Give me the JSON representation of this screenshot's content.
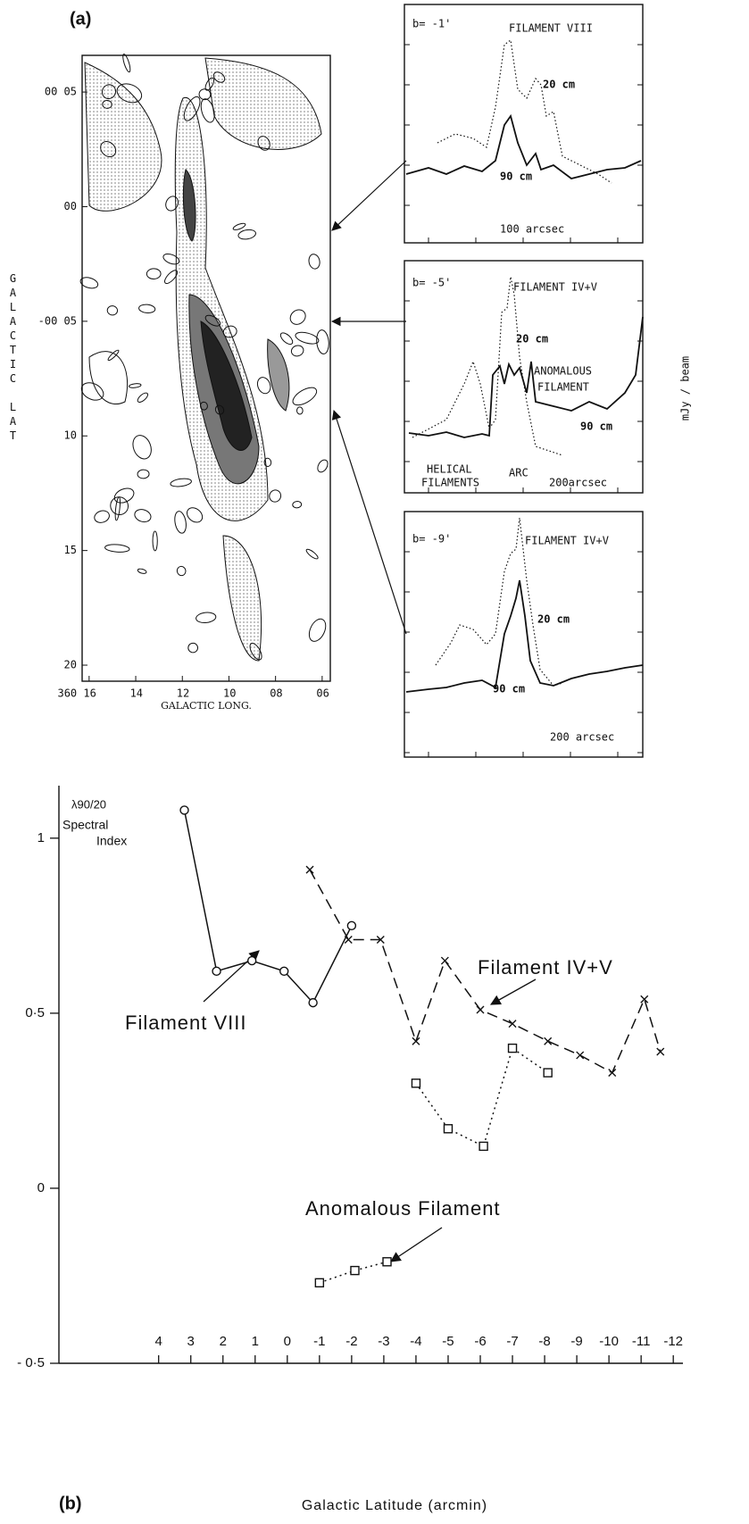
{
  "chart_data": [
    {
      "type": "contour",
      "title": "(a)",
      "xlabel": "GALACTIC LONG.",
      "ylabel": "GALACTIC LAT",
      "xlim": [
        16.3,
        5.65
      ],
      "ylim": [
        -20.7,
        6.6
      ],
      "xticks": [
        {
          "value": 16,
          "label": "360 16"
        },
        14,
        12,
        10,
        {
          "value": 8,
          "label": "08"
        },
        {
          "value": 6,
          "label": "06"
        }
      ],
      "yticks": [
        {
          "value": 5,
          "label": "00 05"
        },
        {
          "value": 0,
          "label": "00"
        },
        {
          "value": -5,
          "label": "-00 05"
        },
        {
          "value": -10,
          "label": "10"
        },
        {
          "value": -15,
          "label": "15"
        },
        {
          "value": -20,
          "label": "20"
        }
      ]
    },
    {
      "type": "profile",
      "annotations": [
        "b= -1'",
        "FILAMENT VIII",
        "20 cm",
        "90 cm",
        "100 arcsec"
      ]
    },
    {
      "type": "profile",
      "ylabel": "mJy / beam",
      "annotations": [
        "b= -5'",
        "FILAMENT IV+V",
        "20 cm",
        "ANOMALOUS",
        "FILAMENT",
        "90 cm",
        "HELICAL",
        "FILAMENTS",
        "ARC",
        "200arcsec"
      ]
    },
    {
      "type": "profile",
      "annotations": [
        "b= -9'",
        "FILAMENT IV+V",
        "20 cm",
        "90 cm",
        "200 arcsec"
      ]
    },
    {
      "type": "line",
      "title": "(b)",
      "xlabel": "Galactic Latitude (arcmin)",
      "ylabel": [
        "λ90/20",
        "Spectral",
        "Index"
      ],
      "xlim": [
        7.1,
        -12.3
      ],
      "ylim": [
        -0.5,
        1.15
      ],
      "xticks": [
        4,
        3,
        2,
        1,
        0,
        -1,
        -2,
        -3,
        -4,
        -5,
        -6,
        -7,
        -8,
        -9,
        -10,
        -11,
        -12
      ],
      "yticks": [
        {
          "value": 1,
          "label": "1"
        },
        {
          "value": 0.5,
          "label": "0·5"
        },
        {
          "value": 0,
          "label": "0"
        },
        {
          "value": -0.5,
          "label": "- 0·5"
        }
      ],
      "series": [
        {
          "name": "Filament VIII",
          "color": "#111111",
          "marker": "circle",
          "dash": "solid",
          "x": [
            3.2,
            2.2,
            1.1,
            0.1,
            -0.8,
            -2.0
          ],
          "values": [
            1.08,
            0.62,
            0.65,
            0.62,
            0.53,
            0.75
          ]
        },
        {
          "name": "Filament IV+V",
          "color": "#111111",
          "marker": "x",
          "dash": "dashed",
          "x": [
            -0.7,
            -1.9,
            -2.9,
            -4.0,
            -4.9,
            -6.0,
            -7.0,
            -8.1,
            -9.1,
            -10.1,
            -11.1,
            -11.6
          ],
          "values": [
            0.91,
            0.71,
            0.71,
            0.42,
            0.65,
            0.51,
            0.47,
            0.42,
            0.38,
            0.33,
            0.54,
            0.39
          ]
        },
        {
          "name": "Anomalous Filament",
          "color": "#111111",
          "marker": "square",
          "dash": "dotted",
          "x": [
            -1.0,
            -2.1,
            -3.1,
            null,
            -4.0,
            -5.0,
            -6.1,
            -7.0,
            -8.1
          ],
          "values": [
            -0.27,
            -0.235,
            -0.21,
            null,
            0.3,
            0.17,
            0.12,
            0.4,
            0.33
          ]
        }
      ]
    }
  ]
}
